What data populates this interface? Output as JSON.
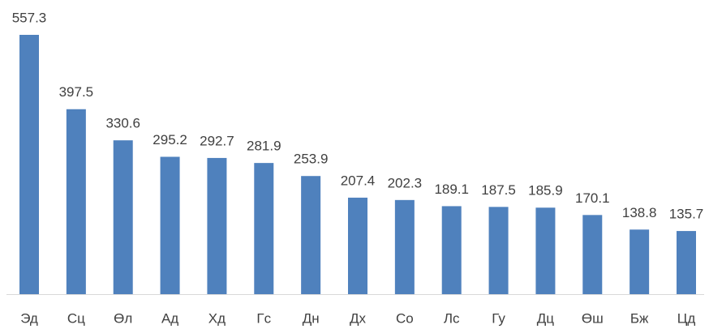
{
  "chart_data": {
    "type": "bar",
    "categories": [
      "Эд",
      "Сц",
      "Өл",
      "Ад",
      "Хд",
      "Гс",
      "Дн",
      "Дх",
      "Со",
      "Лс",
      "Гу",
      "Дц",
      "Өш",
      "Бж",
      "Цд"
    ],
    "values": [
      557.3,
      397.5,
      330.6,
      295.2,
      292.7,
      281.9,
      253.9,
      207.4,
      202.3,
      189.1,
      187.5,
      185.9,
      170.1,
      138.8,
      135.7
    ],
    "color": "#4f81bd"
  }
}
